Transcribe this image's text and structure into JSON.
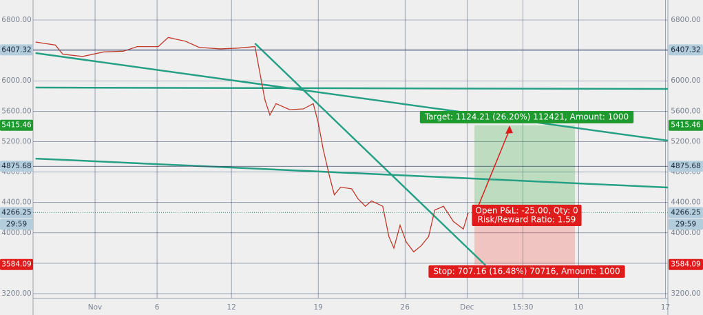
{
  "chart_data": {
    "type": "line",
    "color": "#c0392b",
    "x": [
      -4.8,
      -3.2,
      -2.6,
      -1,
      0.7,
      2.3,
      3.4,
      5.1,
      5.9,
      7.3,
      8.4,
      10.1,
      11.5,
      12.9,
      13.3,
      13.7,
      14.1,
      14.6,
      15.7,
      16.8,
      17.6,
      18,
      18.4,
      18.9,
      19.3,
      19.8,
      20.7,
      21.2,
      21.8,
      22.3,
      23.2,
      23.7,
      24.1,
      24.6,
      25.1,
      25.7,
      26.3,
      26.9,
      27.4,
      28.1,
      28.9,
      29.7,
      30.1
    ],
    "values": [
      6510,
      6470,
      6350,
      6320,
      6380,
      6390,
      6450,
      6450,
      6570,
      6520,
      6440,
      6420,
      6430,
      6450,
      6100,
      5750,
      5550,
      5700,
      5620,
      5630,
      5700,
      5450,
      5100,
      4750,
      4500,
      4600,
      4580,
      4450,
      4350,
      4420,
      4350,
      3950,
      3800,
      4100,
      3880,
      3750,
      3830,
      3950,
      4300,
      4350,
      4150,
      4050,
      4266.25
    ],
    "xlim": [
      -5,
      46.2
    ],
    "ylim": [
      3137,
      7063
    ],
    "xticks": [
      {
        "value": 0,
        "label": "Nov"
      },
      {
        "value": 5,
        "label": "6"
      },
      {
        "value": 11,
        "label": "12"
      },
      {
        "value": 18,
        "label": "19"
      },
      {
        "value": 25,
        "label": "26"
      },
      {
        "value": 30,
        "label": "Dec"
      },
      {
        "value": 34.5,
        "label": "15:30"
      },
      {
        "value": 39,
        "label": "10"
      },
      {
        "value": 46,
        "label": "17"
      }
    ],
    "yticks": [
      {
        "value": 3200,
        "label": "3200.00"
      },
      {
        "value": 3600,
        "label": "3600.00"
      },
      {
        "value": 4000,
        "label": "4000.00"
      },
      {
        "value": 4400,
        "label": "4400.00"
      },
      {
        "value": 4800,
        "label": "4800.00"
      },
      {
        "value": 5200,
        "label": "5200.00"
      },
      {
        "value": 5600,
        "label": "5600.00"
      },
      {
        "value": 6000,
        "label": "6000.00"
      },
      {
        "value": 6400,
        "label": "6400.00"
      },
      {
        "value": 6800,
        "label": "6800.00"
      }
    ],
    "grid": true,
    "drawings": [
      {
        "x": [
          -4.8,
          46.2
        ],
        "y": [
          6365,
          5213
        ],
        "color": "#26a085"
      },
      {
        "x": [
          -4.8,
          46.2
        ],
        "y": [
          5911,
          5893
        ],
        "color": "#26a085"
      },
      {
        "x": [
          12.9,
          31.5
        ],
        "y": [
          6492,
          3572
        ],
        "color": "#26a085"
      },
      {
        "x": [
          -4.8,
          46.2
        ],
        "y": [
          4977,
          4597
        ],
        "color": "#26a085"
      }
    ],
    "badges": [
      {
        "value": 6407.32,
        "bg": "#b4cddc",
        "fg": "#1a2a3a",
        "line": "#3b4a70"
      },
      {
        "value": 4875.68,
        "bg": "#b4cddc",
        "fg": "#1a2a3a",
        "line": "#3b4a70"
      },
      {
        "value": 4266.25,
        "bg": "#b4cddc",
        "fg": "#1a2a3a",
        "line": "#2a8a7a",
        "countdown": "29:59"
      }
    ],
    "position": {
      "x": [
        30.6,
        38.7
      ],
      "entry": 4291.25,
      "target": 5415.46,
      "stop": 3584.09,
      "target_color": "#1e9a2e",
      "stop_color": "#e01b1b",
      "target_label": "Target: 1124.21 (26.20%) 112421, Amount: 1000",
      "pnl_label": "Open P&L: -25.00, Qty: 0",
      "rr_label": "Risk/Reward Ratio: 1.59",
      "stop_label": "Stop: 707.16 (16.48%) 70716, Amount: 1000"
    }
  }
}
